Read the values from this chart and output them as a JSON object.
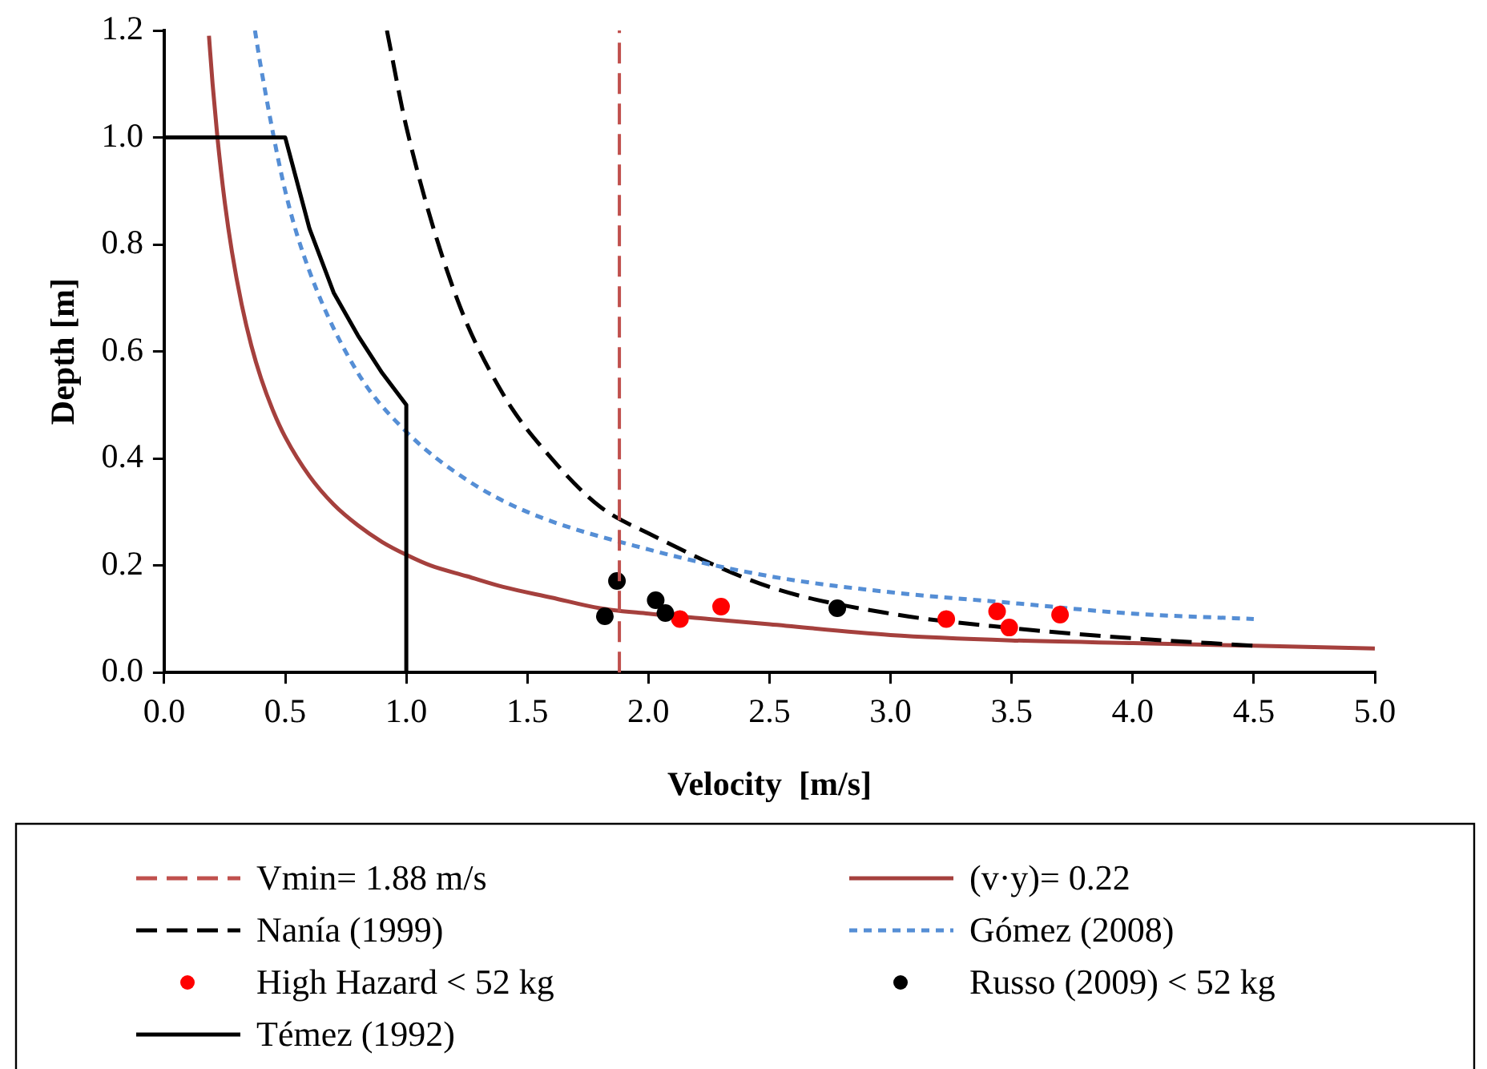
{
  "chart_data": {
    "type": "line",
    "xlabel": "Velocity  [m/s]",
    "ylabel": "Depth [m]",
    "xlim": [
      0,
      5
    ],
    "xticks": [
      {
        "value": 0,
        "label": "0.0"
      },
      {
        "value": 0.5,
        "label": "0.5"
      },
      {
        "value": 1,
        "label": "1.0"
      },
      {
        "value": 1.5,
        "label": "1.5"
      },
      {
        "value": 2,
        "label": "2.0"
      },
      {
        "value": 2.5,
        "label": "2.5"
      },
      {
        "value": 3,
        "label": "3.0"
      },
      {
        "value": 3.5,
        "label": "3.5"
      },
      {
        "value": 4,
        "label": "4.0"
      },
      {
        "value": 4.5,
        "label": "4.5"
      },
      {
        "value": 5,
        "label": "5.0"
      }
    ],
    "ylim": [
      0,
      1.2
    ],
    "yticks": [
      {
        "value": 0,
        "label": "0.0"
      },
      {
        "value": 0.2,
        "label": "0.2"
      },
      {
        "value": 0.4,
        "label": "0.4"
      },
      {
        "value": 0.6,
        "label": "0.6"
      },
      {
        "value": 0.8,
        "label": "0.8"
      },
      {
        "value": 1,
        "label": "1.0"
      },
      {
        "value": 1.2,
        "label": "1.2"
      }
    ],
    "grid": false,
    "legend": "bottom",
    "ref_lines": [
      {
        "axis": "x",
        "value": 1.88,
        "label": "Vmin= 1.88 m/s",
        "color": "#c0504d",
        "line_style": "dashed"
      }
    ],
    "series": [
      {
        "name": "(v·y)= 0.22",
        "color": "#a5403d",
        "line_style": "solid",
        "x": [
          0.185,
          0.2,
          0.22,
          0.25,
          0.28,
          0.32,
          0.36,
          0.4,
          0.45,
          0.5,
          0.6,
          0.7,
          0.8,
          0.9,
          1.0,
          1.1,
          1.25,
          1.4,
          1.6,
          1.8,
          2,
          2.25,
          2.5,
          3,
          3.5,
          4,
          4.5,
          5
        ],
        "values": [
          1.19,
          1.1,
          1.0,
          0.88,
          0.786,
          0.688,
          0.611,
          0.55,
          0.489,
          0.44,
          0.367,
          0.314,
          0.275,
          0.244,
          0.22,
          0.2,
          0.18,
          0.16,
          0.14,
          0.12,
          0.11,
          0.1,
          0.09,
          0.07,
          0.06,
          0.055,
          0.05,
          0.045
        ]
      },
      {
        "name": "Nanía (1999)",
        "color": "#000000",
        "line_style": "dashed",
        "x": [
          0.92,
          1.0,
          1.2,
          1.4,
          1.6,
          1.8,
          2.0,
          2.5,
          3,
          3.5,
          4,
          4.5
        ],
        "values": [
          1.2,
          1.02,
          0.71,
          0.52,
          0.4,
          0.31,
          0.26,
          0.16,
          0.11,
          0.083,
          0.064,
          0.05
        ]
      },
      {
        "name": "Gómez (2008)",
        "color": "#558ed5",
        "line_style": "dotted",
        "x": [
          0.375,
          0.4,
          0.5,
          0.6,
          0.8,
          1,
          1.25,
          1.5,
          2,
          2.5,
          3,
          3.5,
          4,
          4.5
        ],
        "values": [
          1.2,
          1.13,
          0.9,
          0.75,
          0.56,
          0.45,
          0.36,
          0.3,
          0.23,
          0.18,
          0.15,
          0.13,
          0.11,
          0.1
        ]
      },
      {
        "name": "High Hazard < 52 kg",
        "type": "scatter",
        "marker": "circle",
        "color": "#ff0000",
        "x": [
          2.13,
          2.3,
          3.23,
          3.44,
          3.49,
          3.7
        ],
        "values": [
          0.1,
          0.123,
          0.1,
          0.114,
          0.084,
          0.108
        ]
      },
      {
        "name": "Russo (2009) < 52 kg",
        "type": "scatter",
        "marker": "circle",
        "color": "#000000",
        "x": [
          1.82,
          1.87,
          2.03,
          2.07,
          2.78
        ],
        "values": [
          0.105,
          0.171,
          0.135,
          0.111,
          0.12
        ]
      },
      {
        "name": "Témez (1992)",
        "color": "#000000",
        "line_style": "solid",
        "x": [
          0,
          0.5,
          0.6,
          0.7,
          0.8,
          0.9,
          1,
          1
        ],
        "values": [
          1,
          1,
          0.83,
          0.71,
          0.63,
          0.56,
          0.5,
          0
        ]
      }
    ]
  }
}
